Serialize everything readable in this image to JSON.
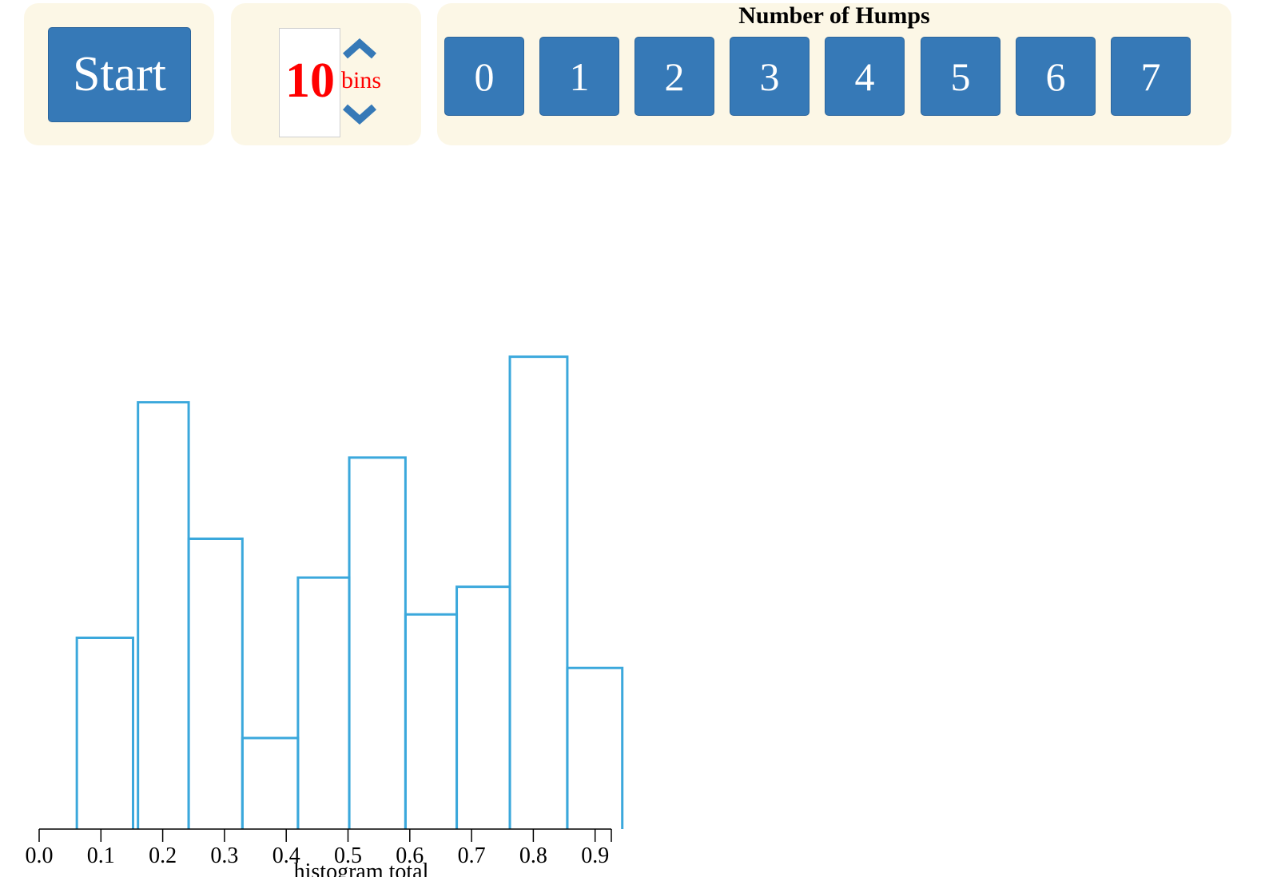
{
  "controls": {
    "start_label": "Start",
    "bins_value": "10",
    "bins_unit": "bins",
    "humps_title": "Number of Humps",
    "humps_options": [
      "0",
      "1",
      "2",
      "3",
      "4",
      "5",
      "6",
      "7"
    ]
  },
  "icons": {
    "increment": "chevron-up-icon",
    "decrement": "chevron-down-icon"
  },
  "colors": {
    "accent": "#3679b7",
    "panel": "#fcf7e6",
    "bins_text": "#ff0000",
    "histogram_stroke": "#3ba8dc"
  },
  "chart_data": {
    "type": "bar",
    "title": "",
    "xlabel": "histogram total",
    "ylabel": "",
    "xlim": [
      0,
      0.95
    ],
    "ylim": [
      0,
      7.4
    ],
    "x_ticks": [
      "0.0",
      "0.1",
      "0.2",
      "0.3",
      "0.4",
      "0.5",
      "0.6",
      "0.7",
      "0.8",
      "0.9"
    ],
    "grid": false,
    "legend": "none",
    "bins": [
      {
        "x0": 0.061,
        "x1": 0.152,
        "value": 3.11
      },
      {
        "x0": 0.16,
        "x1": 0.242,
        "value": 6.94
      },
      {
        "x0": 0.242,
        "x1": 0.329,
        "value": 4.72
      },
      {
        "x0": 0.329,
        "x1": 0.419,
        "value": 1.48
      },
      {
        "x0": 0.419,
        "x1": 0.502,
        "value": 4.09
      },
      {
        "x0": 0.502,
        "x1": 0.593,
        "value": 6.04
      },
      {
        "x0": 0.593,
        "x1": 0.676,
        "value": 3.49
      },
      {
        "x0": 0.676,
        "x1": 0.762,
        "value": 3.94
      },
      {
        "x0": 0.762,
        "x1": 0.855,
        "value": 7.68
      },
      {
        "x0": 0.855,
        "x1": 0.944,
        "value": 2.62
      }
    ]
  }
}
